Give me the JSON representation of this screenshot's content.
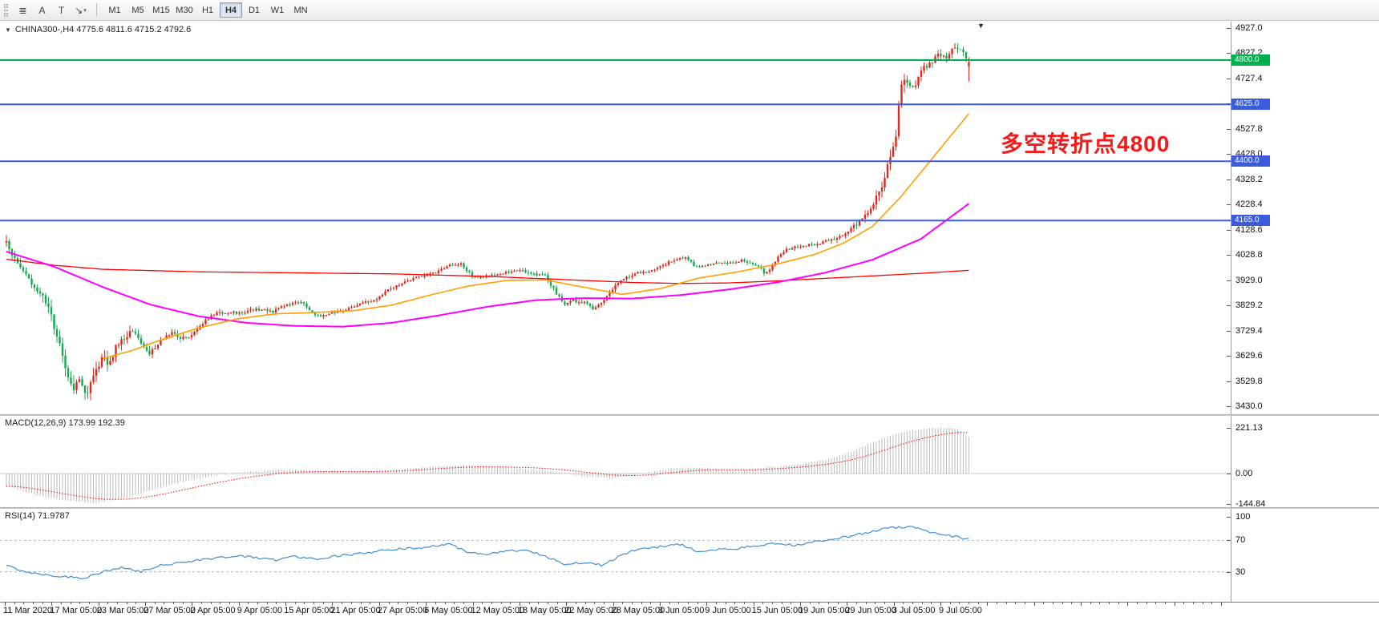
{
  "icons": {
    "one_click_arrow": "▼",
    "shift_marker": "▼"
  },
  "toolbar": {
    "tools": [
      {
        "name": "drawings-list-icon",
        "glyph": "≣"
      },
      {
        "name": "text-annotation-tool-icon",
        "glyph": "A"
      },
      {
        "name": "text-label-tool-icon",
        "glyph": "T"
      },
      {
        "name": "arrow-tools-dropdown-icon",
        "glyph": "↘",
        "caret": "▾"
      }
    ],
    "timeframes": [
      {
        "label": "M1",
        "active": false
      },
      {
        "label": "M5",
        "active": false
      },
      {
        "label": "M15",
        "active": false
      },
      {
        "label": "M30",
        "active": false
      },
      {
        "label": "H1",
        "active": false
      },
      {
        "label": "H4",
        "active": true
      },
      {
        "label": "D1",
        "active": false
      },
      {
        "label": "W1",
        "active": false
      },
      {
        "label": "MN",
        "active": false
      }
    ]
  },
  "chart": {
    "symbol_title": "CHINA300-,H4  4775.6 4811.6 4715.2 4792.6",
    "annotation": {
      "text": "多空转折点4800",
      "color": "#f21b1b"
    }
  },
  "colors": {
    "bull": "#e0281e",
    "bear": "#16a94f",
    "ma_red": "#ff0000",
    "ma_magenta": "#ff00ff",
    "ma_orange": "#ffa000",
    "level_green": "#00b050",
    "level_blue": "#3b5bdb",
    "macd_hist": "#bdbdbd",
    "macd_signal": "#ff0000",
    "rsi_line": "#3f8fd2"
  },
  "chart_data": [
    {
      "type": "candlestick",
      "name": "CHINA300- H4 price",
      "current_bar": {
        "open": 4775.6,
        "high": 4811.6,
        "low": 4715.2,
        "close": 4792.6
      },
      "y_min": 3430.0,
      "y_max": 4927.0,
      "y_ticks": [
        4927.0,
        4827.2,
        4727.4,
        4627.6,
        4527.8,
        4428.0,
        4328.2,
        4228.4,
        4128.6,
        4028.8,
        3929.0,
        3829.2,
        3729.4,
        3629.6,
        3529.8,
        3430.0
      ],
      "x_labels": [
        "11 Mar 2020",
        "17 Mar 05:00",
        "23 Mar 05:00",
        "27 Mar 05:00",
        "2 Apr 05:00",
        "9 Apr 05:00",
        "15 Apr 05:00",
        "21 Apr 05:00",
        "27 Apr 05:00",
        "6 May 05:00",
        "12 May 05:00",
        "18 May 05:00",
        "22 May 05:00",
        "28 May 05:00",
        "3 Jun 05:00",
        "9 Jun 05:00",
        "15 Jun 05:00",
        "19 Jun 05:00",
        "29 Jun 05:00",
        "3 Jul 05:00",
        "9 Jul 05:00"
      ],
      "bars": 344,
      "seed": 20200711,
      "levels": [
        {
          "price": 4800.0,
          "label": "4800.0",
          "color_key": "level_green"
        },
        {
          "price": 4625.0,
          "label": "4625.0",
          "color_key": "level_blue"
        },
        {
          "price": 4400.0,
          "label": "4400.0",
          "color_key": "level_blue"
        },
        {
          "price": 4165.0,
          "label": "4165.0",
          "color_key": "level_blue"
        }
      ],
      "close_anchors": [
        [
          0,
          4075
        ],
        [
          0.01,
          4000
        ],
        [
          0.022,
          3945
        ],
        [
          0.035,
          3880
        ],
        [
          0.045,
          3800
        ],
        [
          0.053,
          3700
        ],
        [
          0.062,
          3580
        ],
        [
          0.07,
          3500
        ],
        [
          0.077,
          3545
        ],
        [
          0.083,
          3470
        ],
        [
          0.092,
          3560
        ],
        [
          0.1,
          3630
        ],
        [
          0.106,
          3580
        ],
        [
          0.114,
          3665
        ],
        [
          0.122,
          3700
        ],
        [
          0.131,
          3730
        ],
        [
          0.139,
          3690
        ],
        [
          0.147,
          3635
        ],
        [
          0.156,
          3665
        ],
        [
          0.164,
          3700
        ],
        [
          0.172,
          3720
        ],
        [
          0.181,
          3695
        ],
        [
          0.193,
          3710
        ],
        [
          0.206,
          3770
        ],
        [
          0.218,
          3795
        ],
        [
          0.231,
          3805
        ],
        [
          0.243,
          3795
        ],
        [
          0.26,
          3815
        ],
        [
          0.277,
          3805
        ],
        [
          0.293,
          3835
        ],
        [
          0.306,
          3845
        ],
        [
          0.322,
          3785
        ],
        [
          0.339,
          3800
        ],
        [
          0.356,
          3815
        ],
        [
          0.372,
          3840
        ],
        [
          0.385,
          3855
        ],
        [
          0.397,
          3890
        ],
        [
          0.414,
          3920
        ],
        [
          0.431,
          3945
        ],
        [
          0.447,
          3960
        ],
        [
          0.46,
          3985
        ],
        [
          0.472,
          3995
        ],
        [
          0.485,
          3940
        ],
        [
          0.501,
          3945
        ],
        [
          0.518,
          3958
        ],
        [
          0.535,
          3968
        ],
        [
          0.547,
          3955
        ],
        [
          0.56,
          3945
        ],
        [
          0.571,
          3880
        ],
        [
          0.579,
          3835
        ],
        [
          0.589,
          3848
        ],
        [
          0.6,
          3840
        ],
        [
          0.61,
          3815
        ],
        [
          0.62,
          3850
        ],
        [
          0.631,
          3900
        ],
        [
          0.643,
          3940
        ],
        [
          0.656,
          3958
        ],
        [
          0.668,
          3965
        ],
        [
          0.681,
          3985
        ],
        [
          0.693,
          4010
        ],
        [
          0.706,
          4020
        ],
        [
          0.716,
          3978
        ],
        [
          0.726,
          3988
        ],
        [
          0.739,
          3996
        ],
        [
          0.751,
          3998
        ],
        [
          0.765,
          4008
        ],
        [
          0.78,
          3988
        ],
        [
          0.789,
          3952
        ],
        [
          0.8,
          4012
        ],
        [
          0.81,
          4052
        ],
        [
          0.826,
          4062
        ],
        [
          0.84,
          4072
        ],
        [
          0.851,
          4082
        ],
        [
          0.862,
          4096
        ],
        [
          0.872,
          4112
        ],
        [
          0.88,
          4140
        ],
        [
          0.889,
          4168
        ],
        [
          0.895,
          4198
        ],
        [
          0.901,
          4235
        ],
        [
          0.91,
          4305
        ],
        [
          0.918,
          4425
        ],
        [
          0.924,
          4492
        ],
        [
          0.928,
          4675
        ],
        [
          0.935,
          4725
        ],
        [
          0.943,
          4695
        ],
        [
          0.951,
          4765
        ],
        [
          0.96,
          4785
        ],
        [
          0.968,
          4825
        ],
        [
          0.976,
          4805
        ],
        [
          0.985,
          4855
        ],
        [
          0.993,
          4835
        ],
        [
          1,
          4792.6
        ]
      ],
      "vol_anchors": [
        [
          0,
          50
        ],
        [
          0.04,
          60
        ],
        [
          0.07,
          70
        ],
        [
          0.09,
          65
        ],
        [
          0.12,
          50
        ],
        [
          0.16,
          38
        ],
        [
          0.2,
          30
        ],
        [
          0.26,
          24
        ],
        [
          0.33,
          22
        ],
        [
          0.4,
          22
        ],
        [
          0.47,
          20
        ],
        [
          0.53,
          18
        ],
        [
          0.57,
          26
        ],
        [
          0.62,
          24
        ],
        [
          0.68,
          20
        ],
        [
          0.74,
          18
        ],
        [
          0.79,
          22
        ],
        [
          0.83,
          22
        ],
        [
          0.87,
          28
        ],
        [
          0.9,
          40
        ],
        [
          0.92,
          60
        ],
        [
          0.93,
          75
        ],
        [
          0.945,
          45
        ],
        [
          0.96,
          40
        ],
        [
          0.98,
          42
        ],
        [
          1,
          38
        ]
      ],
      "ma_red_anchors": [
        [
          0,
          4012
        ],
        [
          0.05,
          3988
        ],
        [
          0.1,
          3972
        ],
        [
          0.2,
          3962
        ],
        [
          0.3,
          3958
        ],
        [
          0.4,
          3954
        ],
        [
          0.5,
          3944
        ],
        [
          0.55,
          3936
        ],
        [
          0.6,
          3928
        ],
        [
          0.65,
          3920
        ],
        [
          0.7,
          3916
        ],
        [
          0.75,
          3918
        ],
        [
          0.8,
          3926
        ],
        [
          0.85,
          3936
        ],
        [
          0.9,
          3946
        ],
        [
          0.95,
          3956
        ],
        [
          1,
          3968
        ]
      ],
      "ma_magenta_anchors": [
        [
          0,
          4042
        ],
        [
          0.05,
          3982
        ],
        [
          0.1,
          3902
        ],
        [
          0.15,
          3832
        ],
        [
          0.2,
          3786
        ],
        [
          0.25,
          3760
        ],
        [
          0.3,
          3748
        ],
        [
          0.35,
          3745
        ],
        [
          0.4,
          3760
        ],
        [
          0.45,
          3790
        ],
        [
          0.5,
          3824
        ],
        [
          0.55,
          3850
        ],
        [
          0.6,
          3858
        ],
        [
          0.65,
          3856
        ],
        [
          0.7,
          3870
        ],
        [
          0.75,
          3892
        ],
        [
          0.8,
          3920
        ],
        [
          0.85,
          3958
        ],
        [
          0.9,
          4010
        ],
        [
          0.95,
          4092
        ],
        [
          1,
          4232
        ]
      ],
      "ma_orange_start": 0.1,
      "ma_orange_anchors": [
        [
          0.1,
          3618
        ],
        [
          0.13,
          3650
        ],
        [
          0.16,
          3692
        ],
        [
          0.2,
          3740
        ],
        [
          0.24,
          3776
        ],
        [
          0.28,
          3796
        ],
        [
          0.32,
          3801
        ],
        [
          0.36,
          3808
        ],
        [
          0.4,
          3830
        ],
        [
          0.44,
          3870
        ],
        [
          0.48,
          3906
        ],
        [
          0.52,
          3928
        ],
        [
          0.56,
          3930
        ],
        [
          0.6,
          3901
        ],
        [
          0.64,
          3873
        ],
        [
          0.68,
          3896
        ],
        [
          0.72,
          3938
        ],
        [
          0.76,
          3962
        ],
        [
          0.8,
          3992
        ],
        [
          0.84,
          4031
        ],
        [
          0.87,
          4076
        ],
        [
          0.9,
          4142
        ],
        [
          0.93,
          4262
        ],
        [
          0.96,
          4402
        ],
        [
          1,
          4588
        ]
      ]
    },
    {
      "type": "bar",
      "name": "MACD",
      "label": "MACD(12,26,9) 173.99 192.39",
      "main": 173.99,
      "signal": 192.39,
      "y_ticks": [
        221.13,
        0,
        -144.84
      ],
      "anchors": [
        [
          0,
          -60
        ],
        [
          0.03,
          -100
        ],
        [
          0.06,
          -130
        ],
        [
          0.09,
          -142
        ],
        [
          0.12,
          -120
        ],
        [
          0.15,
          -82
        ],
        [
          0.18,
          -42
        ],
        [
          0.21,
          -15
        ],
        [
          0.24,
          5
        ],
        [
          0.27,
          15
        ],
        [
          0.3,
          18
        ],
        [
          0.33,
          10
        ],
        [
          0.36,
          8
        ],
        [
          0.39,
          12
        ],
        [
          0.42,
          25
        ],
        [
          0.45,
          35
        ],
        [
          0.48,
          40
        ],
        [
          0.51,
          30
        ],
        [
          0.54,
          24
        ],
        [
          0.57,
          8
        ],
        [
          0.6,
          -14
        ],
        [
          0.63,
          -24
        ],
        [
          0.66,
          0
        ],
        [
          0.69,
          24
        ],
        [
          0.72,
          30
        ],
        [
          0.74,
          20
        ],
        [
          0.76,
          14
        ],
        [
          0.78,
          24
        ],
        [
          0.8,
          34
        ],
        [
          0.82,
          42
        ],
        [
          0.84,
          56
        ],
        [
          0.86,
          76
        ],
        [
          0.88,
          110
        ],
        [
          0.9,
          150
        ],
        [
          0.92,
          185
        ],
        [
          0.94,
          205
        ],
        [
          0.96,
          216
        ],
        [
          0.98,
          221
        ],
        [
          0.99,
          210
        ],
        [
          1,
          173.99
        ]
      ]
    },
    {
      "type": "line",
      "name": "RSI",
      "label": "RSI(14) 71.9787",
      "value": 71.9787,
      "y_ticks": [
        100,
        70,
        30
      ],
      "levels": [
        70,
        30
      ],
      "anchors": [
        [
          0,
          38
        ],
        [
          0.02,
          30
        ],
        [
          0.05,
          25
        ],
        [
          0.08,
          22
        ],
        [
          0.1,
          30
        ],
        [
          0.12,
          35
        ],
        [
          0.14,
          30
        ],
        [
          0.16,
          38
        ],
        [
          0.18,
          42
        ],
        [
          0.2,
          45
        ],
        [
          0.22,
          48
        ],
        [
          0.24,
          50
        ],
        [
          0.26,
          48
        ],
        [
          0.28,
          45
        ],
        [
          0.3,
          50
        ],
        [
          0.32,
          46
        ],
        [
          0.34,
          50
        ],
        [
          0.36,
          52
        ],
        [
          0.38,
          55
        ],
        [
          0.4,
          58
        ],
        [
          0.42,
          60
        ],
        [
          0.44,
          62
        ],
        [
          0.46,
          65
        ],
        [
          0.48,
          55
        ],
        [
          0.5,
          52
        ],
        [
          0.52,
          56
        ],
        [
          0.54,
          58
        ],
        [
          0.56,
          50
        ],
        [
          0.58,
          40
        ],
        [
          0.6,
          42
        ],
        [
          0.62,
          38
        ],
        [
          0.64,
          52
        ],
        [
          0.66,
          60
        ],
        [
          0.68,
          62
        ],
        [
          0.7,
          65
        ],
        [
          0.72,
          55
        ],
        [
          0.74,
          58
        ],
        [
          0.76,
          60
        ],
        [
          0.78,
          63
        ],
        [
          0.8,
          66
        ],
        [
          0.82,
          64
        ],
        [
          0.84,
          68
        ],
        [
          0.86,
          72
        ],
        [
          0.88,
          76
        ],
        [
          0.9,
          82
        ],
        [
          0.92,
          86
        ],
        [
          0.94,
          88
        ],
        [
          0.95,
          84
        ],
        [
          0.96,
          80
        ],
        [
          0.98,
          76
        ],
        [
          1,
          71.98
        ]
      ]
    }
  ]
}
